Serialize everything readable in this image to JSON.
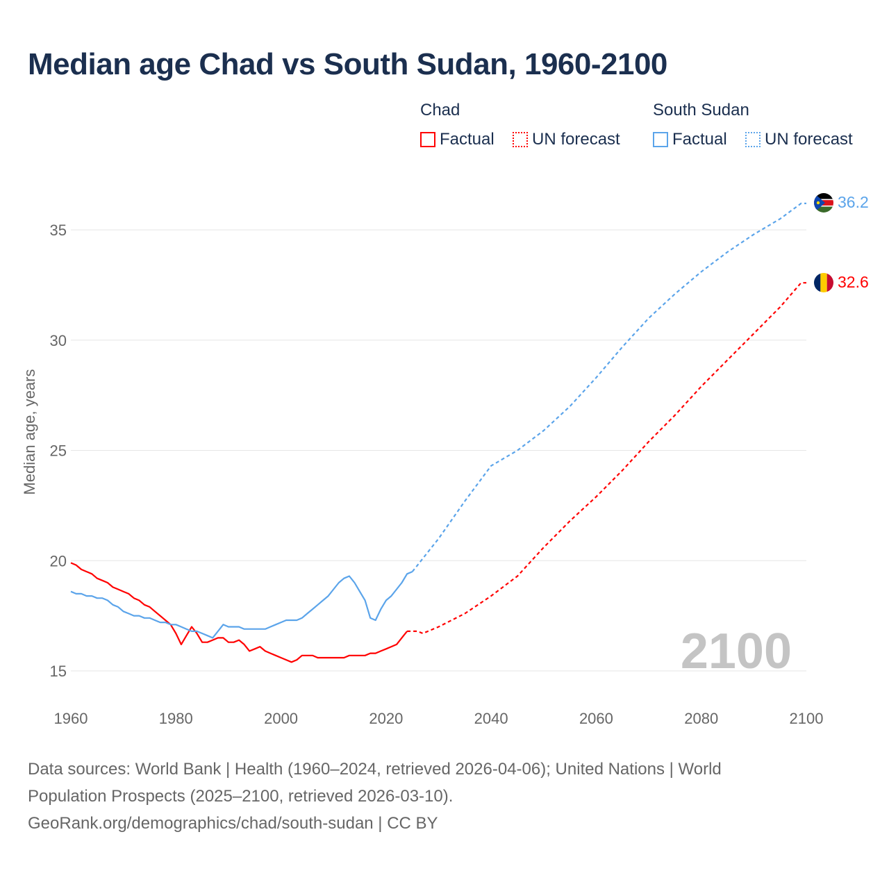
{
  "title": "Median age Chad vs South Sudan, 1960-2100",
  "legend": {
    "groups": [
      {
        "name": "Chad",
        "factual": "Factual",
        "forecast": "UN forecast",
        "color": "#ff0000"
      },
      {
        "name": "South Sudan",
        "factual": "Factual",
        "forecast": "UN forecast",
        "color": "#5ba4ea"
      }
    ]
  },
  "footer": {
    "line1": "Data sources: World Bank | Health (1960–2024, retrieved 2026-04-06); United Nations | World",
    "line2": "Population Prospects (2025–2100, retrieved 2026-03-10).",
    "line3": "GeoRank.org/demographics/chad/south-sudan | CC BY"
  },
  "chart_data": {
    "type": "line",
    "title": "Median age Chad vs South Sudan, 1960-2100",
    "ylabel": "Median age, years",
    "xlabel": "",
    "xlim": [
      1960,
      2100
    ],
    "ylim": [
      15,
      37
    ],
    "xticks": [
      1960,
      1980,
      2000,
      2020,
      2040,
      2060,
      2080,
      2100
    ],
    "yticks": [
      15,
      20,
      25,
      30,
      35
    ],
    "grid": true,
    "watermark_year": "2100",
    "series": [
      {
        "name": "Chad",
        "color": "#ff0000",
        "end_label": "32.6",
        "factual": {
          "x_start": 1960,
          "values": [
            19.9,
            19.8,
            19.6,
            19.5,
            19.4,
            19.2,
            19.1,
            19.0,
            18.8,
            18.7,
            18.6,
            18.5,
            18.3,
            18.2,
            18.0,
            17.9,
            17.7,
            17.5,
            17.3,
            17.1,
            16.7,
            16.2,
            16.6,
            17.0,
            16.7,
            16.3,
            16.3,
            16.4,
            16.5,
            16.5,
            16.3,
            16.3,
            16.4,
            16.2,
            15.9,
            16.0,
            16.1,
            15.9,
            15.8,
            15.7,
            15.6,
            15.5,
            15.4,
            15.5,
            15.7,
            15.7,
            15.7,
            15.6,
            15.6,
            15.6,
            15.6,
            15.6,
            15.6,
            15.7,
            15.7,
            15.7,
            15.7,
            15.8,
            15.8,
            15.9,
            16.0,
            16.1,
            16.2,
            16.5,
            16.8
          ]
        },
        "forecast": {
          "x": [
            2024,
            2025,
            2026,
            2027,
            2030,
            2035,
            2040,
            2045,
            2050,
            2055,
            2060,
            2065,
            2070,
            2075,
            2080,
            2085,
            2090,
            2095,
            2099,
            2100
          ],
          "values": [
            16.8,
            16.8,
            16.8,
            16.7,
            17.0,
            17.6,
            18.4,
            19.3,
            20.6,
            21.8,
            22.9,
            24.1,
            25.4,
            26.6,
            27.9,
            29.1,
            30.3,
            31.5,
            32.6,
            32.6
          ]
        }
      },
      {
        "name": "South Sudan",
        "color": "#5ba4ea",
        "end_label": "36.2",
        "factual": {
          "x_start": 1960,
          "values": [
            18.6,
            18.5,
            18.5,
            18.4,
            18.4,
            18.3,
            18.3,
            18.2,
            18.0,
            17.9,
            17.7,
            17.6,
            17.5,
            17.5,
            17.4,
            17.4,
            17.3,
            17.2,
            17.2,
            17.1,
            17.1,
            17.0,
            16.9,
            16.8,
            16.8,
            16.7,
            16.6,
            16.5,
            16.8,
            17.1,
            17.0,
            17.0,
            17.0,
            16.9,
            16.9,
            16.9,
            16.9,
            16.9,
            17.0,
            17.1,
            17.2,
            17.3,
            17.3,
            17.3,
            17.4,
            17.6,
            17.8,
            18.0,
            18.2,
            18.4,
            18.7,
            19.0,
            19.2,
            19.3,
            19.0,
            18.6,
            18.2,
            17.4,
            17.3,
            17.8,
            18.2,
            18.4,
            18.7,
            19.0,
            19.4,
            19.5
          ]
        },
        "forecast": {
          "x": [
            2025,
            2030,
            2035,
            2040,
            2045,
            2050,
            2055,
            2060,
            2065,
            2070,
            2075,
            2080,
            2085,
            2090,
            2095,
            2099,
            2100
          ],
          "values": [
            19.5,
            21.0,
            22.7,
            24.3,
            25.0,
            25.9,
            27.0,
            28.3,
            29.7,
            31.0,
            32.1,
            33.1,
            34.0,
            34.8,
            35.5,
            36.2,
            36.2
          ]
        }
      }
    ]
  }
}
